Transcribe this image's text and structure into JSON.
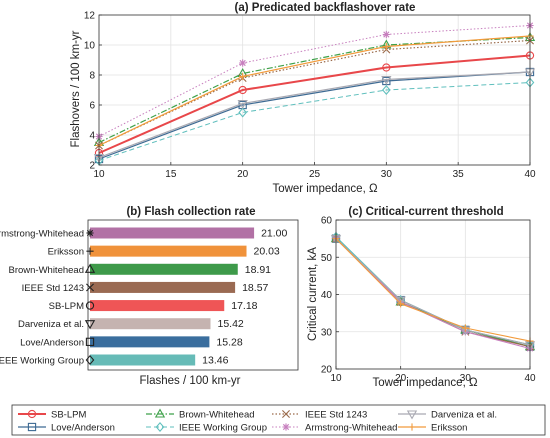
{
  "chart_data": [
    {
      "type": "line",
      "title": "(a) Predicated backflashover rate",
      "xlabel": "Tower impedance, Ω",
      "ylabel": "Flashovers / 100 km-yr",
      "xlim": [
        10,
        40
      ],
      "ylim": [
        2,
        12
      ],
      "xticks": [
        "10",
        "15",
        "20",
        "25",
        "30",
        "35",
        "40"
      ],
      "yticks": [
        "2",
        "4",
        "6",
        "8",
        "10",
        "12"
      ],
      "grid": true,
      "x": [
        10,
        20,
        30,
        40
      ],
      "series": [
        {
          "name": "SB-LPM",
          "values": [
            2.8,
            7.0,
            8.5,
            9.3
          ],
          "color": "#e8474a",
          "dash": "",
          "marker": "circle",
          "width": 2
        },
        {
          "name": "Love/Anderson",
          "values": [
            2.4,
            6.0,
            7.6,
            8.2
          ],
          "color": "#3d6a93",
          "dash": "",
          "marker": "square",
          "width": 1.2
        },
        {
          "name": "Brown-Whitehead",
          "values": [
            3.5,
            8.1,
            10.0,
            10.5
          ],
          "color": "#3fa14a",
          "dash": "6,2,1.5,2",
          "marker": "triangle",
          "width": 1.2
        },
        {
          "name": "IEEE Working Group",
          "values": [
            2.3,
            5.5,
            7.0,
            7.5
          ],
          "color": "#5fbfbd",
          "dash": "5,3",
          "marker": "diamond",
          "width": 1
        },
        {
          "name": "IEEE Std 1243",
          "values": [
            3.3,
            7.8,
            9.7,
            10.3
          ],
          "color": "#9a6a4a",
          "dash": "1.5,2",
          "marker": "x",
          "width": 1.2
        },
        {
          "name": "Armstrong-Whitehead",
          "values": [
            3.9,
            8.8,
            10.7,
            11.3
          ],
          "color": "#c77fbe",
          "dash": "1.5,2",
          "marker": "star",
          "width": 1
        },
        {
          "name": "Darveniza et al.",
          "values": [
            2.5,
            6.1,
            7.7,
            8.2
          ],
          "color": "#a9a9b2",
          "dash": "",
          "marker": "triangle-down",
          "width": 1.2
        },
        {
          "name": "Eriksson",
          "values": [
            3.3,
            7.9,
            9.9,
            10.6
          ],
          "color": "#f29b3c",
          "dash": "",
          "marker": "plus",
          "width": 1.2
        }
      ]
    },
    {
      "type": "bar",
      "orientation": "horizontal",
      "title": "(b) Flash collection rate",
      "xlabel": "Flashes / 100 km-yr",
      "categories": [
        "Armstrong-Whitehead",
        "Eriksson",
        "Brown-Whitehead",
        "IEEE Std 1243",
        "SB-LPM",
        "Darveniza et al.",
        "Love/Anderson",
        "IEEE Working Group"
      ],
      "values": [
        21.0,
        20.03,
        18.91,
        18.57,
        17.18,
        15.42,
        15.28,
        13.46
      ],
      "value_labels": [
        "21.00",
        "20.03",
        "18.91",
        "18.57",
        "17.18",
        "15.42",
        "15.28",
        "13.46"
      ],
      "colors": [
        "#b271a5",
        "#f0923a",
        "#3e9a4a",
        "#9a6a52",
        "#ef5556",
        "#c5b3b0",
        "#3a6e9e",
        "#66bbb7"
      ],
      "markers": [
        "star",
        "plus",
        "triangle",
        "x",
        "circle",
        "triangle-down",
        "square",
        "diamond"
      ],
      "xlim": [
        0,
        21.5
      ]
    },
    {
      "type": "line",
      "title": "(c) Critical-current threshold",
      "xlabel": "Tower impedance, Ω",
      "ylabel": "Critical current, kA",
      "xlim": [
        10,
        40
      ],
      "ylim": [
        20,
        60
      ],
      "xticks": [
        "10",
        "20",
        "30",
        "40"
      ],
      "yticks": [
        "20",
        "30",
        "40",
        "50",
        "60"
      ],
      "grid": true,
      "x": [
        10,
        20,
        30,
        40
      ],
      "series": [
        {
          "name": "SB-LPM",
          "values": [
            55,
            38,
            30.5,
            26
          ],
          "color": "#e8474a",
          "marker": "circle"
        },
        {
          "name": "Love/Anderson",
          "values": [
            55,
            38.5,
            30.5,
            26
          ],
          "color": "#3d6a93",
          "marker": "square"
        },
        {
          "name": "Brown-Whitehead",
          "values": [
            55,
            38,
            30.5,
            26
          ],
          "color": "#3fa14a",
          "marker": "triangle"
        },
        {
          "name": "IEEE Working Group",
          "values": [
            55.5,
            38.5,
            30.5,
            26.5
          ],
          "color": "#5fbfbd",
          "marker": "diamond"
        },
        {
          "name": "IEEE Std 1243",
          "values": [
            55,
            38,
            30,
            26
          ],
          "color": "#9a6a4a",
          "marker": "x"
        },
        {
          "name": "Armstrong-Whitehead",
          "values": [
            55,
            38,
            30,
            25.5
          ],
          "color": "#c77fbe",
          "marker": "star"
        },
        {
          "name": "Darveniza et al.",
          "values": [
            55,
            38.5,
            30.5,
            26.5
          ],
          "color": "#a9a9b2",
          "marker": "triangle-down"
        },
        {
          "name": "Eriksson",
          "values": [
            55,
            37.5,
            31,
            27.5
          ],
          "color": "#f29b3c",
          "marker": "plus"
        }
      ]
    }
  ],
  "legend": {
    "placement": "bottom",
    "entries": [
      {
        "name": "SB-LPM",
        "color": "#e8474a",
        "dash": "",
        "marker": "circle",
        "width": 2
      },
      {
        "name": "Brown-Whitehead",
        "color": "#3fa14a",
        "dash": "6,2,1.5,2",
        "marker": "triangle",
        "width": 1.2
      },
      {
        "name": "IEEE Std 1243",
        "color": "#9a6a4a",
        "dash": "1.5,2",
        "marker": "x",
        "width": 1.2
      },
      {
        "name": "Darveniza et al.",
        "color": "#a9a9b2",
        "dash": "",
        "marker": "triangle-down",
        "width": 1.2
      },
      {
        "name": "Love/Anderson",
        "color": "#3d6a93",
        "dash": "",
        "marker": "square",
        "width": 1.2
      },
      {
        "name": "IEEE Working Group",
        "color": "#5fbfbd",
        "dash": "5,3",
        "marker": "diamond",
        "width": 1
      },
      {
        "name": "Armstrong-Whitehead",
        "color": "#c77fbe",
        "dash": "1.5,2",
        "marker": "star",
        "width": 1
      },
      {
        "name": "Eriksson",
        "color": "#f29b3c",
        "dash": "",
        "marker": "plus",
        "width": 1.2
      }
    ]
  }
}
